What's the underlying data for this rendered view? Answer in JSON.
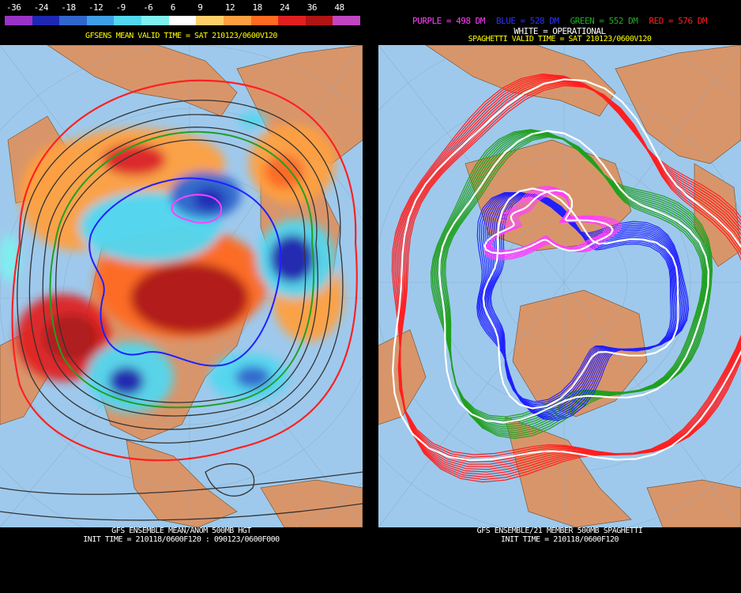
{
  "left": {
    "colorbar": {
      "labels": [
        "-36",
        "-24",
        "-18",
        "-12",
        "-9",
        "-6",
        "6",
        "9",
        "12",
        "18",
        "24",
        "36",
        "48"
      ],
      "colors": [
        "#9b32c8",
        "#1e28b4",
        "#2f66cc",
        "#3f9fe6",
        "#52d7ef",
        "#7ff0f0",
        "#ffffff",
        "#ffd06a",
        "#ffa040",
        "#ff6a20",
        "#e02020",
        "#b01414",
        "#c046c0"
      ]
    },
    "subtitle": "GFSENS MEAN VALID TIME = SAT 210123/0600V120",
    "footer": {
      "line1": "GFS ENSEMBLE MEAN/ANOM 500MB HGT",
      "line2": "INIT TIME = 210118/0600F120 : 090123/0600F000"
    }
  },
  "right": {
    "legend": {
      "purple": "PURPLE = 498 DM",
      "blue": "BLUE = 528 DM",
      "green": "GREEN = 552 DM",
      "red": "RED = 576 DM"
    },
    "operational": "WHITE = OPERATIONAL",
    "subtitle": "SPAGHETTI VALID TIME = SAT 210123/0600V120",
    "footer": {
      "line1": "GFS ENSEMBLE/21 MEMBER 500MB SPAGHETTI",
      "line2": "INIT TIME = 210118/0600F120"
    }
  },
  "colors": {
    "ocean": "#9ec9ec",
    "land": "#d9956a",
    "purple": "#ff40ff",
    "blue": "#2020ff",
    "green": "#20a020",
    "red": "#ff2020",
    "subtitle": "#ffff00"
  }
}
